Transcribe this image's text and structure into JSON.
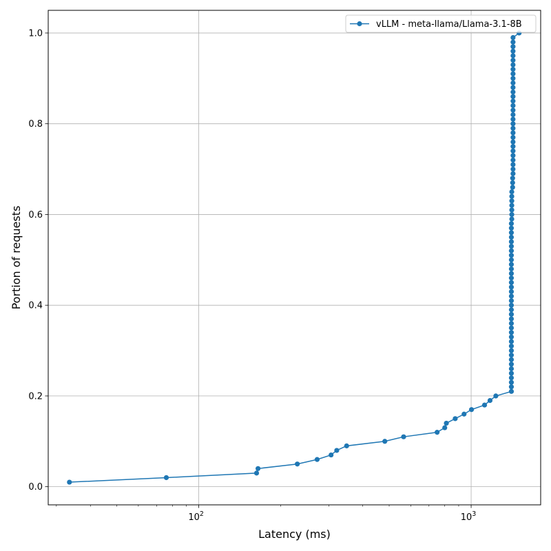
{
  "chart_data": {
    "type": "line",
    "xlabel": "Latency (ms)",
    "ylabel": "Portion of requests",
    "xscale": "log",
    "xlim": [
      28,
      1800
    ],
    "ylim": [
      -0.04,
      1.05
    ],
    "xticks_major": [
      {
        "value": 100,
        "base": "10",
        "exp": "2"
      },
      {
        "value": 1000,
        "base": "10",
        "exp": "3"
      }
    ],
    "yticks": [
      0.0,
      0.2,
      0.4,
      0.6,
      0.8,
      1.0
    ],
    "ytick_labels": [
      "0.0",
      "0.2",
      "0.4",
      "0.6",
      "0.8",
      "1.0"
    ],
    "grid": true,
    "legend_position": "top-right",
    "colors": {
      "series": "#1f77b4",
      "grid": "#b0b0b0",
      "axis": "#000000"
    },
    "series": [
      {
        "name": "vLLM - meta-llama/Llama-3.1-8B",
        "marker": "circle",
        "points": [
          [
            33.5,
            0.01
          ],
          [
            76,
            0.02
          ],
          [
            163,
            0.03
          ],
          [
            165,
            0.04
          ],
          [
            230,
            0.05
          ],
          [
            272,
            0.06
          ],
          [
            306,
            0.07
          ],
          [
            321,
            0.08
          ],
          [
            349,
            0.09
          ],
          [
            482,
            0.1
          ],
          [
            565,
            0.11
          ],
          [
            750,
            0.12
          ],
          [
            800,
            0.13
          ],
          [
            811,
            0.14
          ],
          [
            874,
            0.15
          ],
          [
            942,
            0.16
          ],
          [
            1003,
            0.17
          ],
          [
            1120,
            0.18
          ],
          [
            1173,
            0.19
          ],
          [
            1232,
            0.2
          ],
          [
            1405,
            0.21
          ],
          [
            1405,
            0.22
          ],
          [
            1405,
            0.23
          ],
          [
            1405,
            0.24
          ],
          [
            1405,
            0.25
          ],
          [
            1405,
            0.26
          ],
          [
            1405,
            0.27
          ],
          [
            1405,
            0.28
          ],
          [
            1405,
            0.29
          ],
          [
            1405,
            0.3
          ],
          [
            1405,
            0.31
          ],
          [
            1405,
            0.32
          ],
          [
            1405,
            0.33
          ],
          [
            1405,
            0.34
          ],
          [
            1405,
            0.35
          ],
          [
            1405,
            0.36
          ],
          [
            1405,
            0.37
          ],
          [
            1405,
            0.38
          ],
          [
            1405,
            0.39
          ],
          [
            1405,
            0.4
          ],
          [
            1405,
            0.41
          ],
          [
            1405,
            0.42
          ],
          [
            1405,
            0.43
          ],
          [
            1405,
            0.44
          ],
          [
            1405,
            0.45
          ],
          [
            1405,
            0.46
          ],
          [
            1405,
            0.47
          ],
          [
            1405,
            0.48
          ],
          [
            1405,
            0.49
          ],
          [
            1405,
            0.5
          ],
          [
            1405,
            0.51
          ],
          [
            1405,
            0.52
          ],
          [
            1405,
            0.53
          ],
          [
            1405,
            0.54
          ],
          [
            1405,
            0.55
          ],
          [
            1405,
            0.56
          ],
          [
            1405,
            0.57
          ],
          [
            1405,
            0.58
          ],
          [
            1410,
            0.59
          ],
          [
            1410,
            0.6
          ],
          [
            1410,
            0.61
          ],
          [
            1410,
            0.62
          ],
          [
            1410,
            0.63
          ],
          [
            1410,
            0.64
          ],
          [
            1410,
            0.65
          ],
          [
            1420,
            0.66
          ],
          [
            1420,
            0.67
          ],
          [
            1420,
            0.68
          ],
          [
            1425,
            0.69
          ],
          [
            1425,
            0.7
          ],
          [
            1425,
            0.71
          ],
          [
            1425,
            0.72
          ],
          [
            1425,
            0.73
          ],
          [
            1425,
            0.74
          ],
          [
            1425,
            0.75
          ],
          [
            1425,
            0.76
          ],
          [
            1425,
            0.77
          ],
          [
            1425,
            0.78
          ],
          [
            1425,
            0.79
          ],
          [
            1425,
            0.8
          ],
          [
            1425,
            0.81
          ],
          [
            1425,
            0.82
          ],
          [
            1425,
            0.83
          ],
          [
            1425,
            0.84
          ],
          [
            1425,
            0.85
          ],
          [
            1425,
            0.86
          ],
          [
            1425,
            0.87
          ],
          [
            1425,
            0.88
          ],
          [
            1425,
            0.89
          ],
          [
            1425,
            0.9
          ],
          [
            1425,
            0.91
          ],
          [
            1425,
            0.92
          ],
          [
            1425,
            0.93
          ],
          [
            1425,
            0.94
          ],
          [
            1425,
            0.95
          ],
          [
            1425,
            0.96
          ],
          [
            1425,
            0.97
          ],
          [
            1425,
            0.98
          ],
          [
            1425,
            0.99
          ],
          [
            1500,
            1.0
          ]
        ]
      }
    ]
  }
}
